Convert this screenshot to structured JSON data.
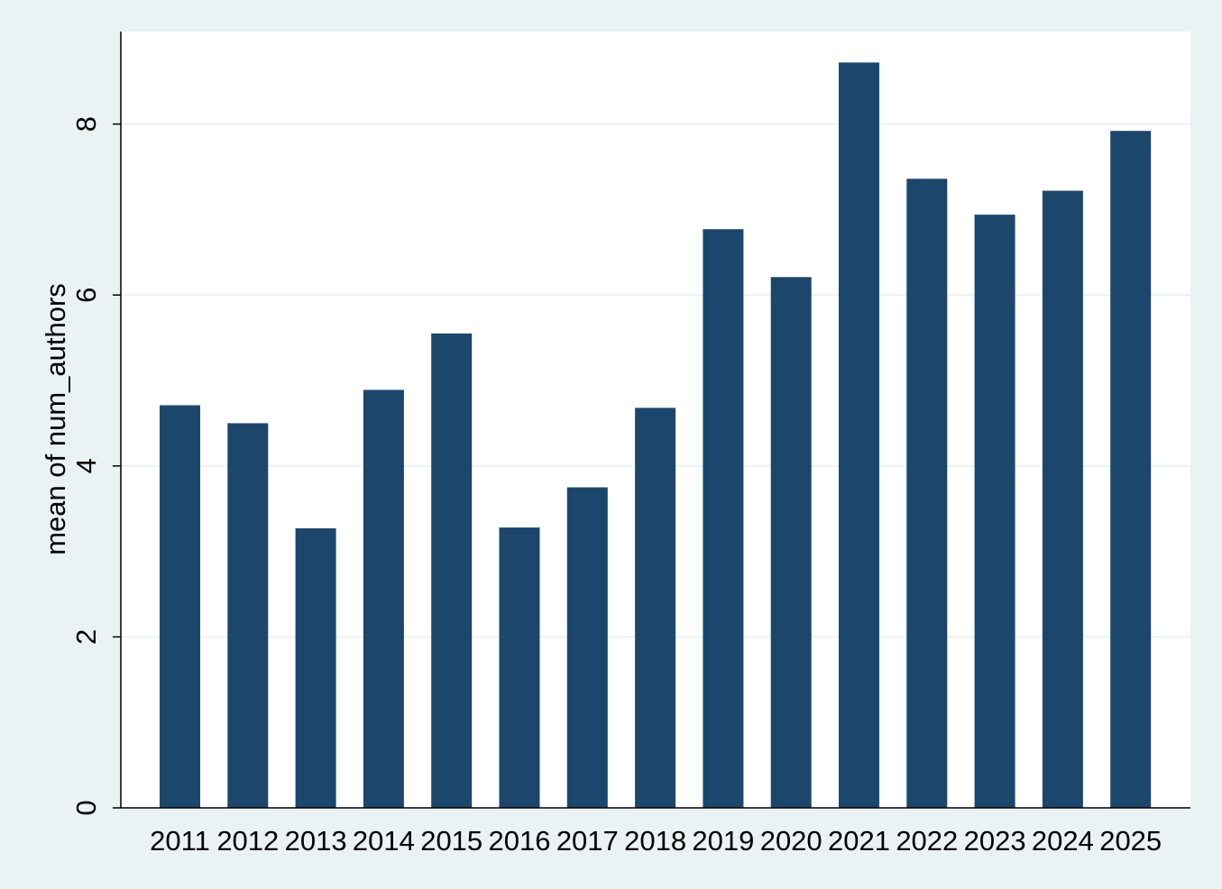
{
  "chart_data": {
    "type": "bar",
    "title": "",
    "xlabel": "",
    "ylabel": "mean of num_authors",
    "categories": [
      "2011",
      "2012",
      "2013",
      "2014",
      "2015",
      "2016",
      "2017",
      "2018",
      "2019",
      "2020",
      "2021",
      "2022",
      "2023",
      "2024",
      "2025"
    ],
    "values": [
      4.71,
      4.5,
      3.27,
      4.89,
      5.55,
      3.28,
      3.75,
      4.68,
      6.77,
      6.21,
      8.72,
      7.36,
      6.94,
      7.22,
      7.92
    ],
    "yticks": [
      "0",
      "2",
      "4",
      "6",
      "8"
    ],
    "ylim": [
      0,
      9.1
    ],
    "grid": true,
    "legend": "none",
    "colors": {
      "bar": "#1d466d",
      "background": "#eaf2f3",
      "plot_background": "#ffffff",
      "grid": "#eaf2f3",
      "axis": "#000000"
    }
  }
}
